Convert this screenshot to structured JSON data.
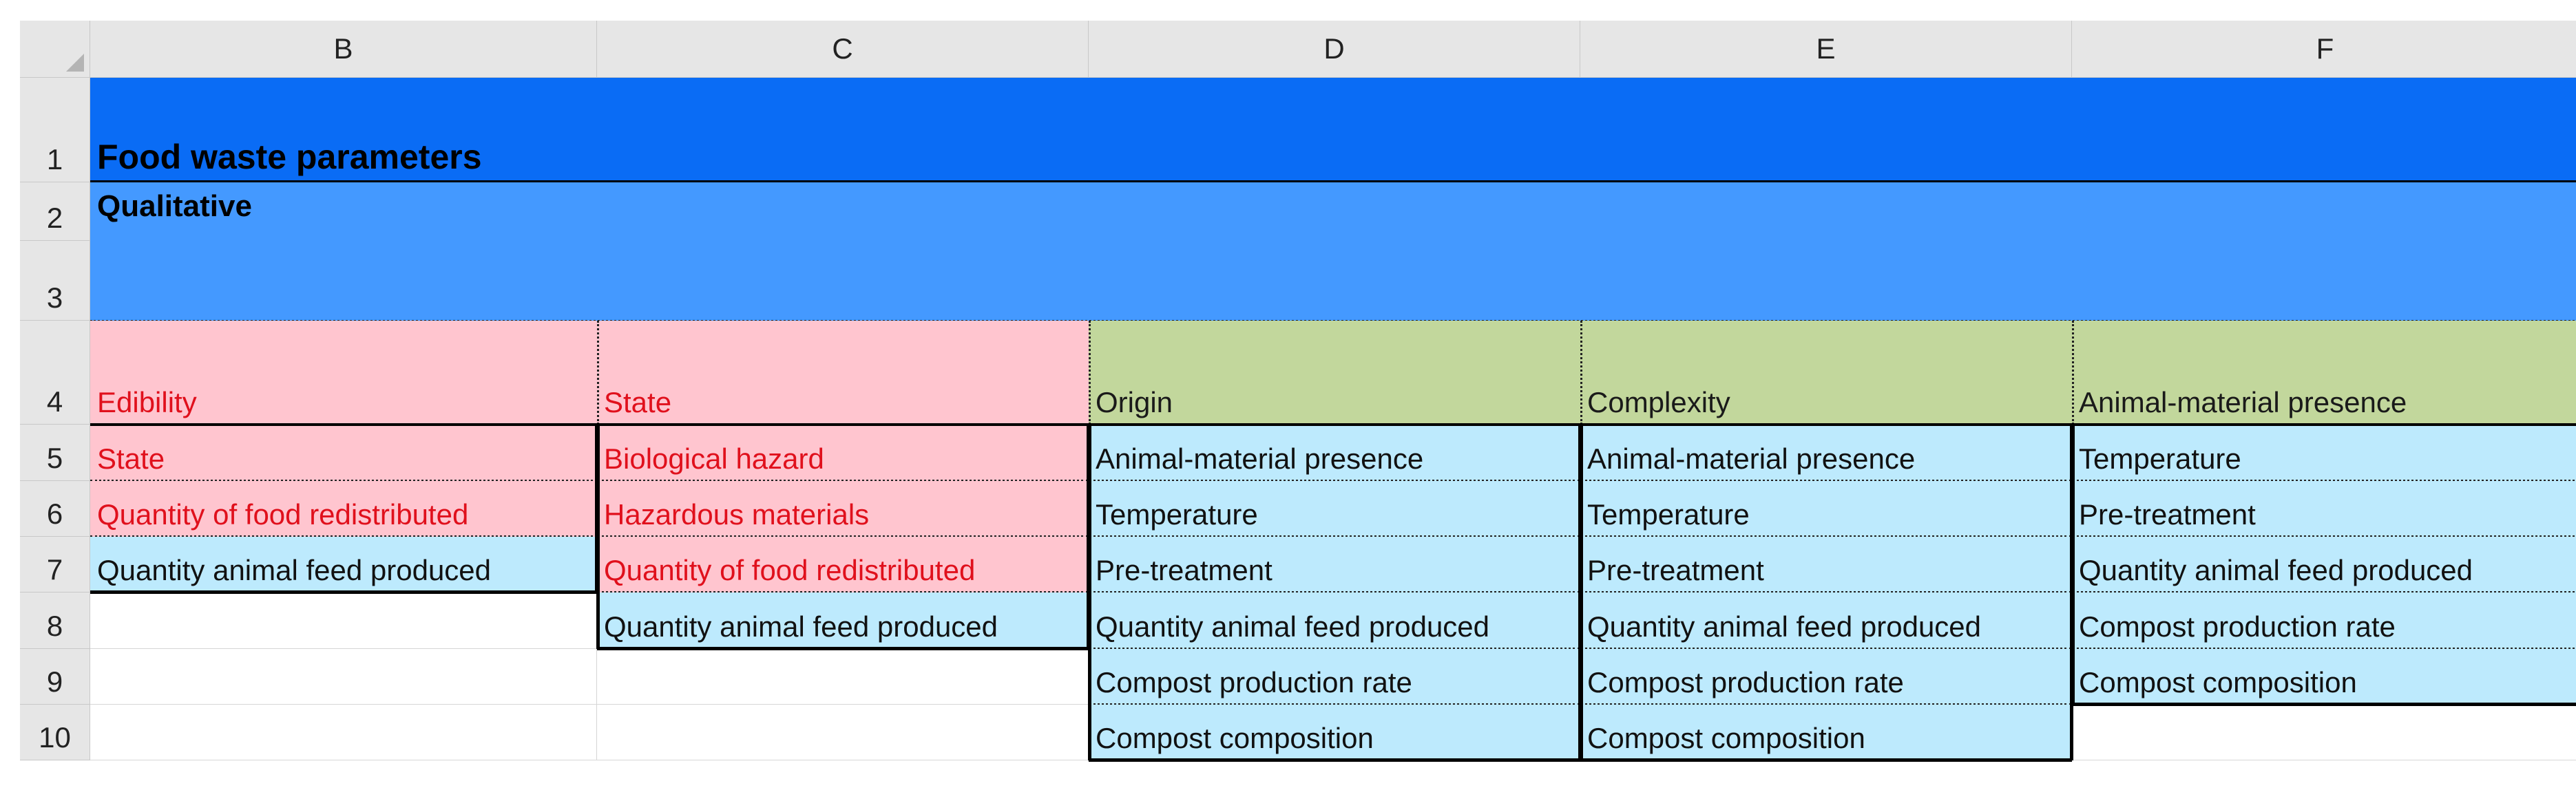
{
  "columns": [
    "B",
    "C",
    "D",
    "E",
    "F"
  ],
  "rows": [
    "1",
    "2",
    "3",
    "4",
    "5",
    "6",
    "7",
    "8",
    "9",
    "10"
  ],
  "title": "Food waste parameters",
  "subtitle": "Qualitative",
  "headers": {
    "B": "Edibility",
    "C": "State",
    "D": "Origin",
    "E": "Complexity",
    "F": "Animal-material presence"
  },
  "lists": {
    "B": [
      "State",
      "Quantity of food redistributed",
      "Quantity animal feed produced"
    ],
    "C": [
      "Biological hazard",
      "Hazardous materials",
      "Quantity of food redistributed",
      "Quantity animal feed produced"
    ],
    "D": [
      "Animal-material presence",
      "Temperature",
      "Pre-treatment",
      "Quantity animal feed produced",
      "Compost production rate",
      "Compost composition"
    ],
    "E": [
      "Animal-material presence",
      "Temperature",
      "Pre-treatment",
      "Quantity animal feed produced",
      "Compost production rate",
      "Compost composition"
    ],
    "F": [
      "Temperature",
      "Pre-treatment",
      "Quantity animal feed produced",
      "Compost production rate",
      "Compost composition"
    ]
  },
  "colors": {
    "title_band": "#0a6cf5",
    "subtitle_band": "#4499ff",
    "pink_header": "#ffc5cf",
    "green_header": "#c2d79c",
    "cyan_cell": "#bdeafd",
    "red_text": "#e0101c"
  }
}
